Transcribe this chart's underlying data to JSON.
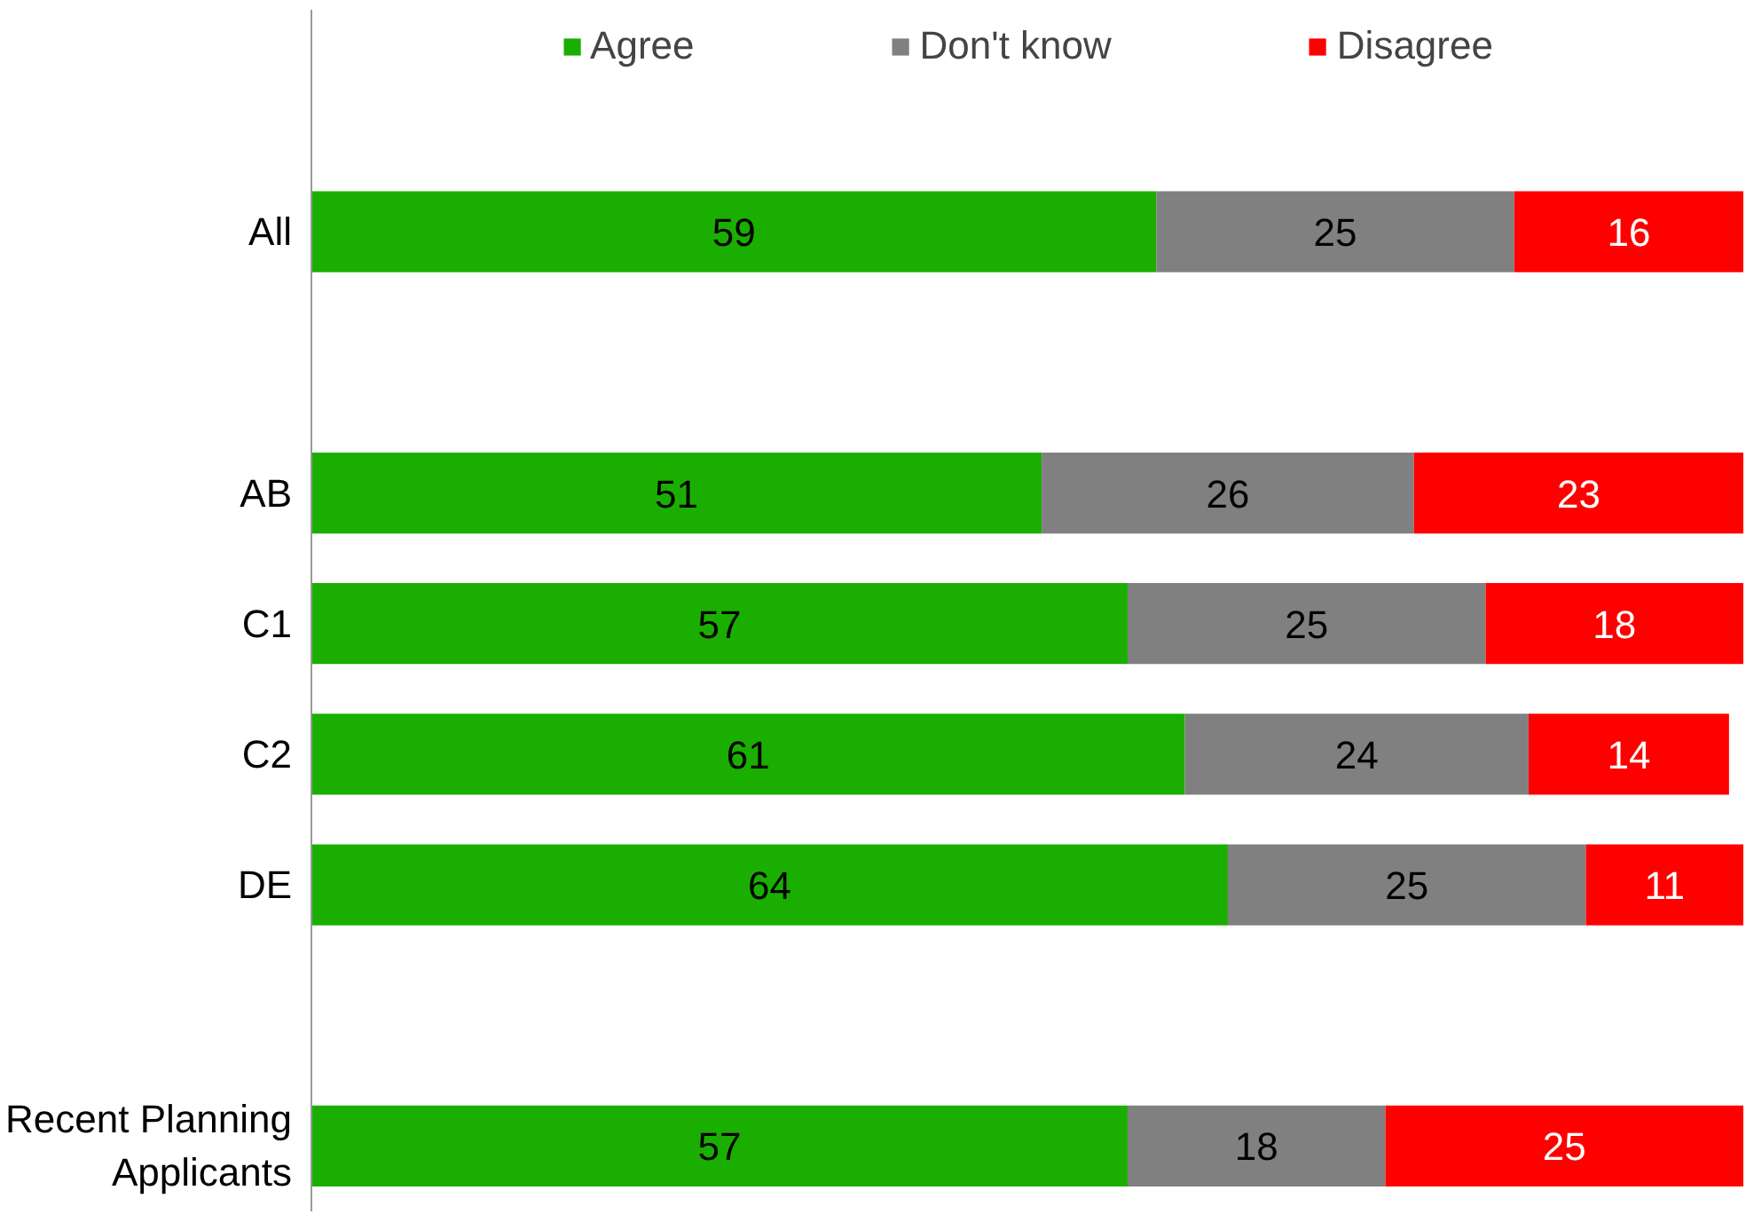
{
  "chart_data": {
    "type": "bar",
    "orientation": "horizontal",
    "stacked": true,
    "data_labels": true,
    "legend": "top",
    "grid": false,
    "categories": [
      "All",
      null,
      "AB",
      "C1",
      "C2",
      "DE",
      null,
      "Recent Planning Applicants"
    ],
    "series": [
      {
        "name": "Agree",
        "color": "#1aaf00",
        "values": [
          59,
          null,
          51,
          57,
          61,
          64,
          null,
          57
        ]
      },
      {
        "name": "Don't know",
        "color": "#808080",
        "values": [
          25,
          null,
          26,
          25,
          24,
          25,
          null,
          18
        ]
      },
      {
        "name": "Disagree",
        "color": "#ff0000",
        "values": [
          16,
          null,
          23,
          18,
          14,
          11,
          null,
          25
        ]
      }
    ]
  }
}
